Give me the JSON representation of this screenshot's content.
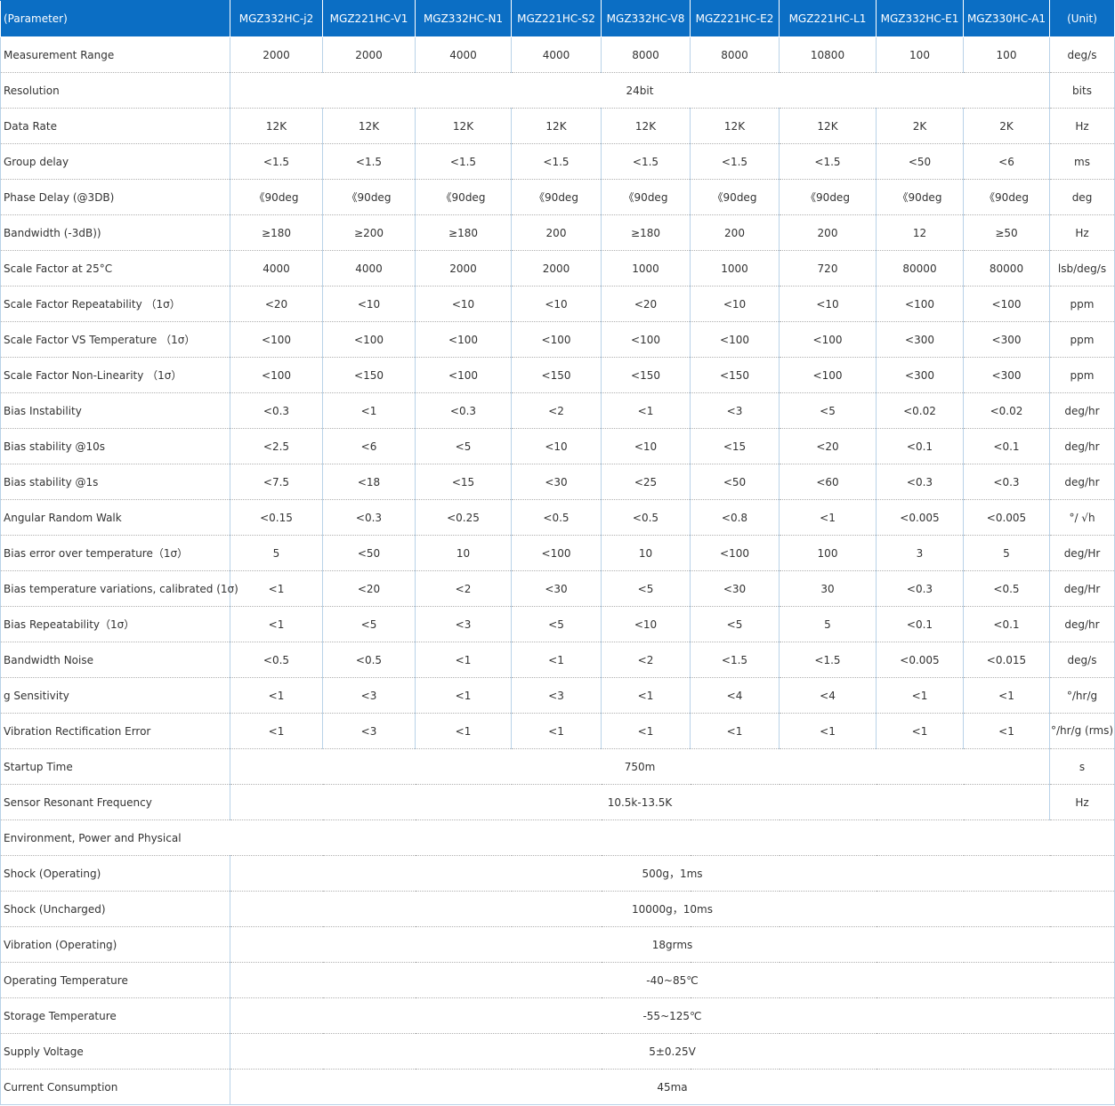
{
  "table": {
    "headers": [
      "(Parameter)",
      "MGZ332HC-j2",
      "MGZ221HC-V1",
      "MGZ332HC-N1",
      "MGZ221HC-S2",
      "MGZ332HC-V8",
      "MGZ221HC-E2",
      "MGZ221HC-L1",
      "MGZ332HC-E1",
      "MGZ330HC-A1",
      "(Unit)"
    ],
    "rows": [
      {
        "param": "Measurement Range",
        "values": [
          "2000",
          "2000",
          "4000",
          "4000",
          "8000",
          "8000",
          "10800",
          "100",
          "100"
        ],
        "unit": "deg/s"
      },
      {
        "param": "Resolution",
        "merged": "24bit",
        "unit": "bits"
      },
      {
        "param": "Data Rate",
        "values": [
          "12K",
          "12K",
          "12K",
          "12K",
          "12K",
          "12K",
          "12K",
          "2K",
          "2K"
        ],
        "unit": "Hz"
      },
      {
        "param": "Group delay",
        "values": [
          "<1.5",
          "<1.5",
          "<1.5",
          "<1.5",
          "<1.5",
          "<1.5",
          "<1.5",
          "<50",
          "<6"
        ],
        "unit": "ms"
      },
      {
        "param": "Phase Delay (@3DB)",
        "values": [
          "《90deg",
          "《90deg",
          "《90deg",
          "《90deg",
          "《90deg",
          "《90deg",
          "《90deg",
          "《90deg",
          "《90deg"
        ],
        "unit": "deg"
      },
      {
        "param": "Bandwidth (-3dB))",
        "values": [
          "≥180",
          "≥200",
          "≥180",
          "200",
          "≥180",
          "200",
          "200",
          "12",
          "≥50"
        ],
        "unit": "Hz"
      },
      {
        "param": "Scale Factor at 25°C",
        "values": [
          "4000",
          "4000",
          "2000",
          "2000",
          "1000",
          "1000",
          "720",
          "80000",
          "80000"
        ],
        "unit": "lsb/deg/s"
      },
      {
        "param": "Scale Factor Repeatability （1σ）",
        "values": [
          "<20",
          "<10",
          "<10",
          "<10",
          "<20",
          "<10",
          "<10",
          "<100",
          "<100"
        ],
        "unit": "ppm"
      },
      {
        "param": "Scale Factor VS Temperature （1σ）",
        "values": [
          "<100",
          "<100",
          "<100",
          "<100",
          "<100",
          "<100",
          "<100",
          "<300",
          "<300"
        ],
        "unit": "ppm"
      },
      {
        "param": "Scale Factor Non-Linearity （1σ）",
        "values": [
          "<100",
          "<150",
          "<100",
          "<150",
          "<150",
          "<150",
          "<100",
          "<300",
          "<300"
        ],
        "unit": "ppm"
      },
      {
        "param": "Bias Instability",
        "values": [
          "<0.3",
          "<1",
          "<0.3",
          "<2",
          "<1",
          "<3",
          "<5",
          "<0.02",
          "<0.02"
        ],
        "unit": "deg/hr"
      },
      {
        "param": "Bias stability @10s",
        "values": [
          "<2.5",
          "<6",
          "<5",
          "<10",
          "<10",
          "<15",
          "<20",
          "<0.1",
          "<0.1"
        ],
        "unit": "deg/hr"
      },
      {
        "param": "Bias stability @1s",
        "values": [
          "<7.5",
          "<18",
          "<15",
          "<30",
          "<25",
          "<50",
          "<60",
          "<0.3",
          "<0.3"
        ],
        "unit": "deg/hr"
      },
      {
        "param": "Angular Random Walk",
        "values": [
          "<0.15",
          "<0.3",
          "<0.25",
          "<0.5",
          "<0.5",
          "<0.8",
          "<1",
          "<0.005",
          "<0.005"
        ],
        "unit": "°/ √h"
      },
      {
        "param": "Bias error over  temperature（1σ）",
        "values": [
          "5",
          "<50",
          "10",
          "<100",
          "10",
          "<100",
          "100",
          "3",
          "5"
        ],
        "unit": "deg/Hr"
      },
      {
        "param": "Bias temperature variations,  calibrated (1σ)",
        "values": [
          "<1",
          "<20",
          "<2",
          "<30",
          "<5",
          "<30",
          "30",
          "<0.3",
          "<0.5"
        ],
        "unit": "deg/Hr"
      },
      {
        "param": "Bias Repeatability（1σ）",
        "values": [
          "<1",
          "<5",
          "<3",
          "<5",
          "<10",
          "<5",
          "5",
          "<0.1",
          "<0.1"
        ],
        "unit": "deg/hr"
      },
      {
        "param": "Bandwidth Noise",
        "values": [
          "<0.5",
          "<0.5",
          "<1",
          "<1",
          "<2",
          "<1.5",
          "<1.5",
          "<0.005",
          "<0.015"
        ],
        "unit": "deg/s"
      },
      {
        "param": "g Sensitivity",
        "values": [
          "<1",
          "<3",
          "<1",
          "<3",
          "<1",
          "<4",
          "<4",
          "<1",
          "<1"
        ],
        "unit": "°/hr/g"
      },
      {
        "param": "Vibration Rectification Error",
        "values": [
          "<1",
          "<3",
          "<1",
          "<1",
          "<1",
          "<1",
          "<1",
          "<1",
          "<1"
        ],
        "unit": "°/hr/g (rms)"
      },
      {
        "param": "Startup  Time",
        "merged": "750m",
        "unit": "s"
      },
      {
        "param": "Sensor  Resonant Frequency",
        "merged": "10.5k-13.5K",
        "unit": "Hz"
      },
      {
        "section": "Environment, Power and  Physical"
      },
      {
        "param": "Shock (Operating)",
        "merged_all": "500g，1ms"
      },
      {
        "param": "Shock (Uncharged)",
        "merged_all": "10000g，10ms"
      },
      {
        "param": "Vibration (Operating)",
        "merged_all": "18grms"
      },
      {
        "param": "Operating Temperature",
        "merged_all": "-40~85℃"
      },
      {
        "param": "Storage Temperature",
        "merged_all": "-55~125℃"
      },
      {
        "param": "Supply Voltage",
        "merged_all": "5±0.25V"
      },
      {
        "param": "Current Consumption",
        "merged_all": "45ma"
      }
    ]
  }
}
